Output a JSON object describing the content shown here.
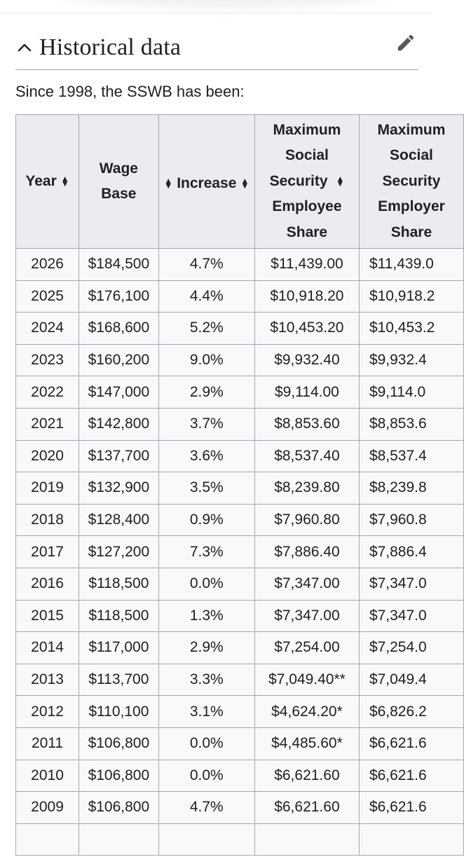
{
  "section": {
    "title": "Historical data",
    "intro": "Since 1998, the SSWB has been:"
  },
  "table": {
    "headers": {
      "year": "Year",
      "wage_base": [
        "Wage",
        "Base"
      ],
      "increase": "Increase",
      "employee_share": [
        "Maximum",
        "Social",
        "Security",
        "Employee",
        "Share"
      ],
      "employer_share": [
        "Maximum",
        "Social",
        "Security",
        "Employer",
        "Share"
      ]
    },
    "rows": [
      {
        "year": "2026",
        "wage_base": "$184,500",
        "increase": "4.7%",
        "employee": "$11,439.00",
        "employer": "$11,439.0"
      },
      {
        "year": "2025",
        "wage_base": "$176,100",
        "increase": "4.4%",
        "employee": "$10,918.20",
        "employer": "$10,918.2"
      },
      {
        "year": "2024",
        "wage_base": "$168,600",
        "increase": "5.2%",
        "employee": "$10,453.20",
        "employer": "$10,453.2"
      },
      {
        "year": "2023",
        "wage_base": "$160,200",
        "increase": "9.0%",
        "employee": "$9,932.40",
        "employer": "$9,932.4"
      },
      {
        "year": "2022",
        "wage_base": "$147,000",
        "increase": "2.9%",
        "employee": "$9,114.00",
        "employer": "$9,114.0"
      },
      {
        "year": "2021",
        "wage_base": "$142,800",
        "increase": "3.7%",
        "employee": "$8,853.60",
        "employer": "$8,853.6"
      },
      {
        "year": "2020",
        "wage_base": "$137,700",
        "increase": "3.6%",
        "employee": "$8,537.40",
        "employer": "$8,537.4"
      },
      {
        "year": "2019",
        "wage_base": "$132,900",
        "increase": "3.5%",
        "employee": "$8,239.80",
        "employer": "$8,239.8"
      },
      {
        "year": "2018",
        "wage_base": "$128,400",
        "increase": "0.9%",
        "employee": "$7,960.80",
        "employer": "$7,960.8"
      },
      {
        "year": "2017",
        "wage_base": "$127,200",
        "increase": "7.3%",
        "employee": "$7,886.40",
        "employer": "$7,886.4"
      },
      {
        "year": "2016",
        "wage_base": "$118,500",
        "increase": "0.0%",
        "employee": "$7,347.00",
        "employer": "$7,347.0"
      },
      {
        "year": "2015",
        "wage_base": "$118,500",
        "increase": "1.3%",
        "employee": "$7,347.00",
        "employer": "$7,347.0"
      },
      {
        "year": "2014",
        "wage_base": "$117,000",
        "increase": "2.9%",
        "employee": "$7,254.00",
        "employer": "$7,254.0"
      },
      {
        "year": "2013",
        "wage_base": "$113,700",
        "increase": "3.3%",
        "employee": "$7,049.40**",
        "employer": "$7,049.4"
      },
      {
        "year": "2012",
        "wage_base": "$110,100",
        "increase": "3.1%",
        "employee": "$4,624.20*",
        "employer": "$6,826.2"
      },
      {
        "year": "2011",
        "wage_base": "$106,800",
        "increase": "0.0%",
        "employee": "$4,485.60*",
        "employer": "$6,621.6"
      },
      {
        "year": "2010",
        "wage_base": "$106,800",
        "increase": "0.0%",
        "employee": "$6,621.60",
        "employer": "$6,621.6"
      },
      {
        "year": "2009",
        "wage_base": "$106,800",
        "increase": "4.7%",
        "employee": "$6,621.60",
        "employer": "$6,621.6"
      }
    ]
  },
  "icons": {
    "collapse": "chevron-up-icon",
    "edit": "pencil-icon",
    "sort": "sort-icon"
  },
  "colors": {
    "header_bg": "#eaecf0",
    "cell_bg": "#f8f9fa",
    "border": "#a2a9b1",
    "text": "#202122"
  }
}
